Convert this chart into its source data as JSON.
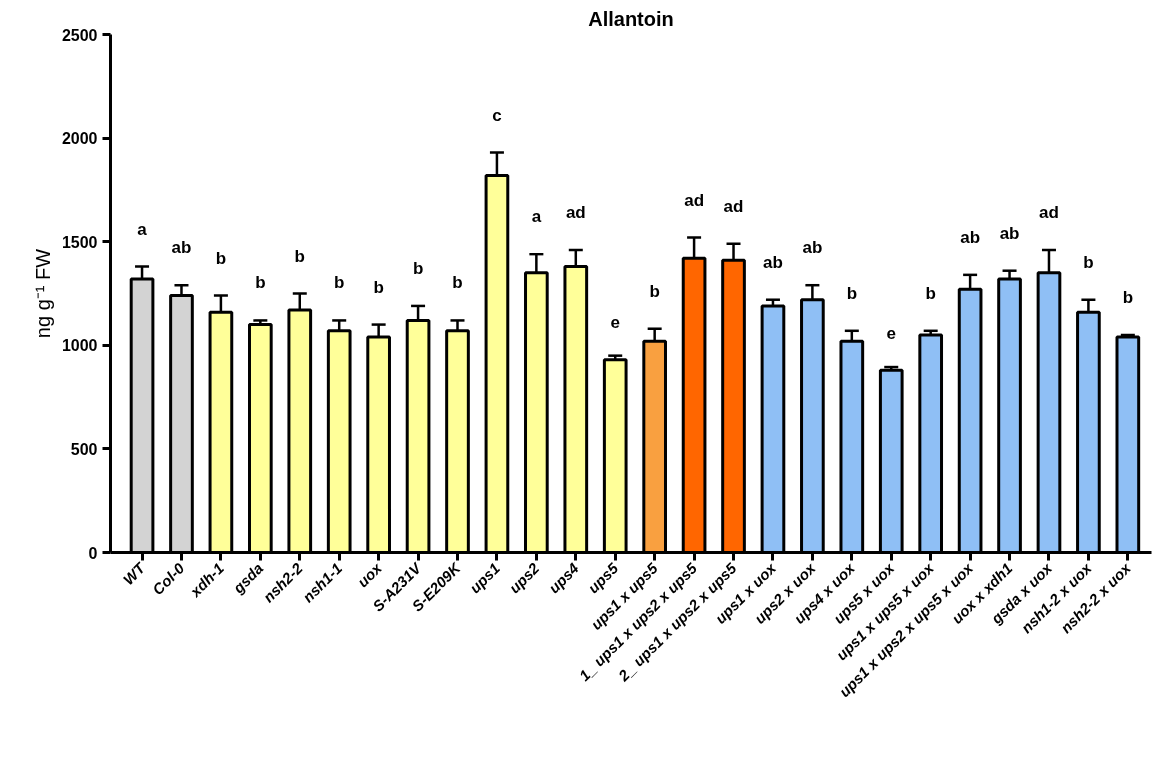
{
  "chart_data": {
    "type": "bar",
    "title": "Allantoin",
    "ylabel": "ng g⁻¹ FW",
    "categories": [
      "WT",
      "Col-0",
      "xdh-1",
      "gsda",
      "nsh2-2",
      "nsh1-1",
      "uox",
      "S-A231V",
      "S-E209K",
      "ups1",
      "ups2",
      "ups4",
      "ups5",
      "ups1 x ups5",
      "1_ ups1 x ups2 x ups5",
      "2_ ups1 x ups2 x ups5",
      "ups1 x uox",
      "ups2 x uox",
      "ups4 x uox",
      "ups5 x uox",
      "ups1 x ups5 x uox",
      "ups1 x ups2 x ups5 x uox",
      "uox x xdh1",
      "gsda x uox",
      "nsh1-2 x uox",
      "nsh2-2 x uox"
    ],
    "values": [
      1320,
      1240,
      1160,
      1100,
      1170,
      1070,
      1040,
      1120,
      1070,
      1820,
      1350,
      1380,
      930,
      1020,
      1420,
      1410,
      1190,
      1220,
      1020,
      880,
      1050,
      1270,
      1320,
      1350,
      1160,
      1040
    ],
    "errors": [
      60,
      50,
      80,
      20,
      80,
      50,
      60,
      70,
      50,
      110,
      90,
      80,
      20,
      60,
      100,
      80,
      30,
      70,
      50,
      15,
      20,
      70,
      40,
      110,
      60,
      10
    ],
    "colors": [
      "#d3d3d3",
      "#d3d3d3",
      "#ffff99",
      "#ffff99",
      "#ffff99",
      "#ffff99",
      "#ffff99",
      "#ffff99",
      "#ffff99",
      "#ffff99",
      "#ffff99",
      "#ffff99",
      "#ffff99",
      "#f9a040",
      "#ff6600",
      "#ff6600",
      "#8fbff5",
      "#8fbff5",
      "#8fbff5",
      "#8fbff5",
      "#8fbff5",
      "#8fbff5",
      "#8fbff5",
      "#8fbff5",
      "#8fbff5",
      "#8fbff5"
    ],
    "ylim": [
      0,
      2500
    ],
    "yticks": [
      0,
      500,
      1000,
      1500,
      2000,
      2500
    ],
    "grid": false,
    "annotations": [
      "a",
      "ab",
      "b",
      "b",
      "b",
      "b",
      "b",
      "b",
      "b",
      "c",
      "a",
      "ad",
      "e",
      "b",
      "ad",
      "ad",
      "ab",
      "ab",
      "b",
      "e",
      "b",
      "ab",
      "ab",
      "ad",
      "b",
      "b"
    ]
  }
}
